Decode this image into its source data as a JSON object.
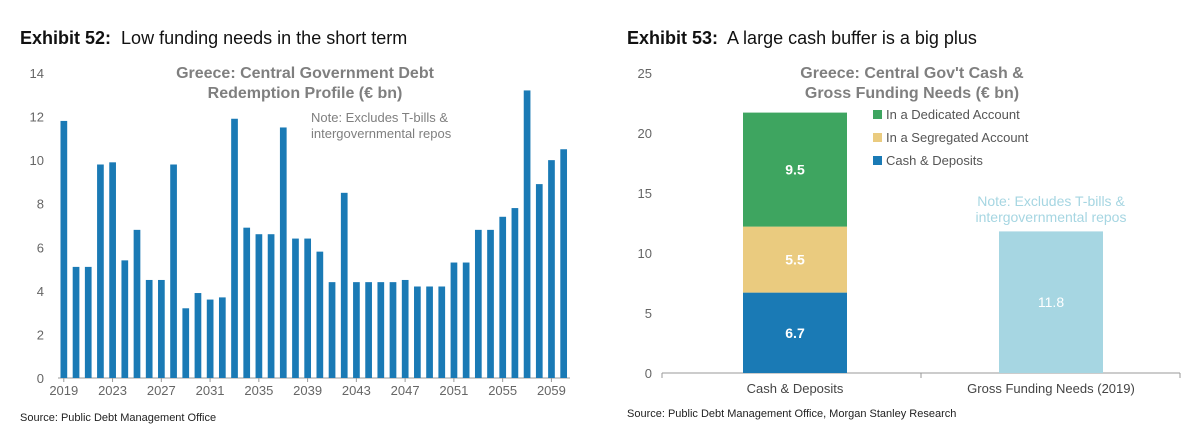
{
  "exhibits": [
    {
      "label": "Exhibit 52:",
      "title": "Low funding needs in the short term",
      "source": "Source: Public Debt Management Office"
    },
    {
      "label": "Exhibit 53:",
      "title": "A large cash buffer is a big plus",
      "source": "Source: Public Debt Management Office, Morgan Stanley Research"
    }
  ],
  "chart_data": [
    {
      "type": "bar",
      "title": "Greece: Central Government Debt Redemption Profile (€ bn)",
      "title_lines": [
        "Greece: Central Government Debt",
        "Redemption Profile (€ bn)"
      ],
      "note_lines": [
        "Note: Excludes T-bills &",
        "intergovernmental repos"
      ],
      "x": [
        2019,
        2020,
        2021,
        2022,
        2023,
        2024,
        2025,
        2026,
        2027,
        2028,
        2029,
        2030,
        2031,
        2032,
        2033,
        2034,
        2035,
        2036,
        2037,
        2038,
        2039,
        2040,
        2041,
        2042,
        2043,
        2044,
        2045,
        2046,
        2047,
        2048,
        2049,
        2050,
        2051,
        2052,
        2053,
        2054,
        2055,
        2056,
        2057,
        2058,
        2059,
        2060
      ],
      "values": [
        11.8,
        5.1,
        5.1,
        9.8,
        9.9,
        5.4,
        6.8,
        4.5,
        4.5,
        9.8,
        3.2,
        3.9,
        3.6,
        3.7,
        11.9,
        6.9,
        6.6,
        6.6,
        11.5,
        6.4,
        6.4,
        5.8,
        4.4,
        8.5,
        4.4,
        4.4,
        4.4,
        4.4,
        4.5,
        4.2,
        4.2,
        4.2,
        5.3,
        5.3,
        6.8,
        6.8,
        7.4,
        7.8,
        13.2,
        8.9,
        10.0,
        10.5
      ],
      "xtick_labels": [
        "2019",
        "2023",
        "2027",
        "2031",
        "2035",
        "2039",
        "2043",
        "2047",
        "2051",
        "2055",
        "2059"
      ],
      "ytick_labels": [
        "0",
        "2",
        "4",
        "6",
        "8",
        "10",
        "12",
        "14"
      ],
      "ylim": [
        0,
        14
      ],
      "color": "#1a7ab5"
    },
    {
      "type": "bar",
      "stacked": true,
      "title": "Greece: Central Gov't Cash & Gross Funding Needs (€ bn)",
      "title_lines": [
        "Greece: Central Gov't Cash &",
        "Gross Funding Needs (€ bn)"
      ],
      "note_lines": [
        "Note: Excludes T-bills &",
        "intergovernmental repos"
      ],
      "categories": [
        "Cash & Deposits",
        "Gross Funding Needs (2019)"
      ],
      "series": [
        {
          "name": "Cash & Deposits",
          "values": [
            6.7,
            0
          ],
          "color": "#1a7ab5"
        },
        {
          "name": "In a Segregated Account",
          "values": [
            5.5,
            0
          ],
          "color": "#eacb7f"
        },
        {
          "name": "In a Dedicated Account",
          "values": [
            9.5,
            0
          ],
          "color": "#3ea560"
        },
        {
          "name": "Gross Funding Needs",
          "values": [
            0,
            11.8
          ],
          "color": "#a6d6e2"
        }
      ],
      "legend": [
        "In a Dedicated Account",
        "In a Segregated Account",
        "Cash & Deposits"
      ],
      "ytick_labels": [
        "0",
        "5",
        "10",
        "15",
        "20",
        "25"
      ],
      "ylim": [
        0,
        25
      ]
    }
  ]
}
